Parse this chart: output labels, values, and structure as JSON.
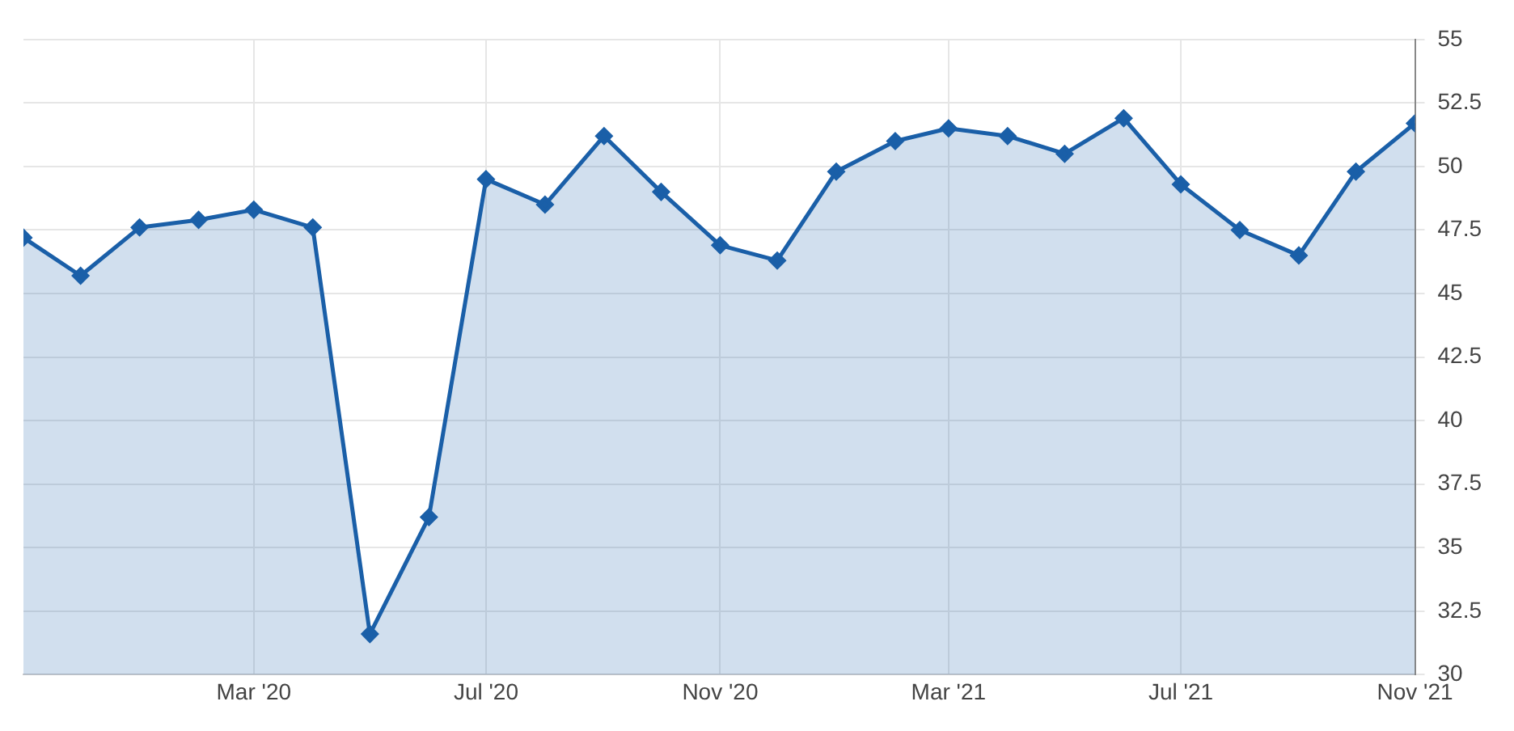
{
  "chart_data": {
    "type": "area",
    "x": [
      "2019-11",
      "2019-12",
      "2020-01",
      "2020-02",
      "2020-03",
      "2020-04",
      "2020-05",
      "2020-06",
      "2020-07",
      "2020-08",
      "2020-09",
      "2020-10",
      "2020-11",
      "2020-12",
      "2021-01",
      "2021-02",
      "2021-03",
      "2021-04",
      "2021-05",
      "2021-06",
      "2021-07",
      "2021-08",
      "2021-09",
      "2021-10",
      "2021-11"
    ],
    "series": [
      {
        "color": "#1a5fa8",
        "values": [
          47.2,
          45.7,
          47.6,
          47.9,
          48.3,
          47.6,
          31.6,
          36.2,
          49.5,
          48.5,
          51.2,
          49.0,
          46.9,
          46.3,
          49.8,
          51.0,
          51.5,
          51.2,
          50.5,
          51.9,
          49.3,
          47.5,
          46.5,
          49.8,
          51.7
        ]
      }
    ],
    "xlim": [
      "2019-11",
      "2021-11"
    ],
    "xticks": [
      {
        "value": "2020-03",
        "label": "Mar '20"
      },
      {
        "value": "2020-07",
        "label": "Jul '20"
      },
      {
        "value": "2020-11",
        "label": "Nov '20"
      },
      {
        "value": "2021-03",
        "label": "Mar '21"
      },
      {
        "value": "2021-07",
        "label": "Jul '21"
      },
      {
        "value": "2021-11",
        "label": "Nov '21"
      }
    ],
    "ylim": [
      30,
      55
    ],
    "yticks": [
      30,
      32.5,
      35,
      37.5,
      40,
      42.5,
      45,
      47.5,
      50,
      52.5,
      55
    ],
    "grid": true,
    "marker": "diamond",
    "line_style": "solid",
    "legend": false
  }
}
